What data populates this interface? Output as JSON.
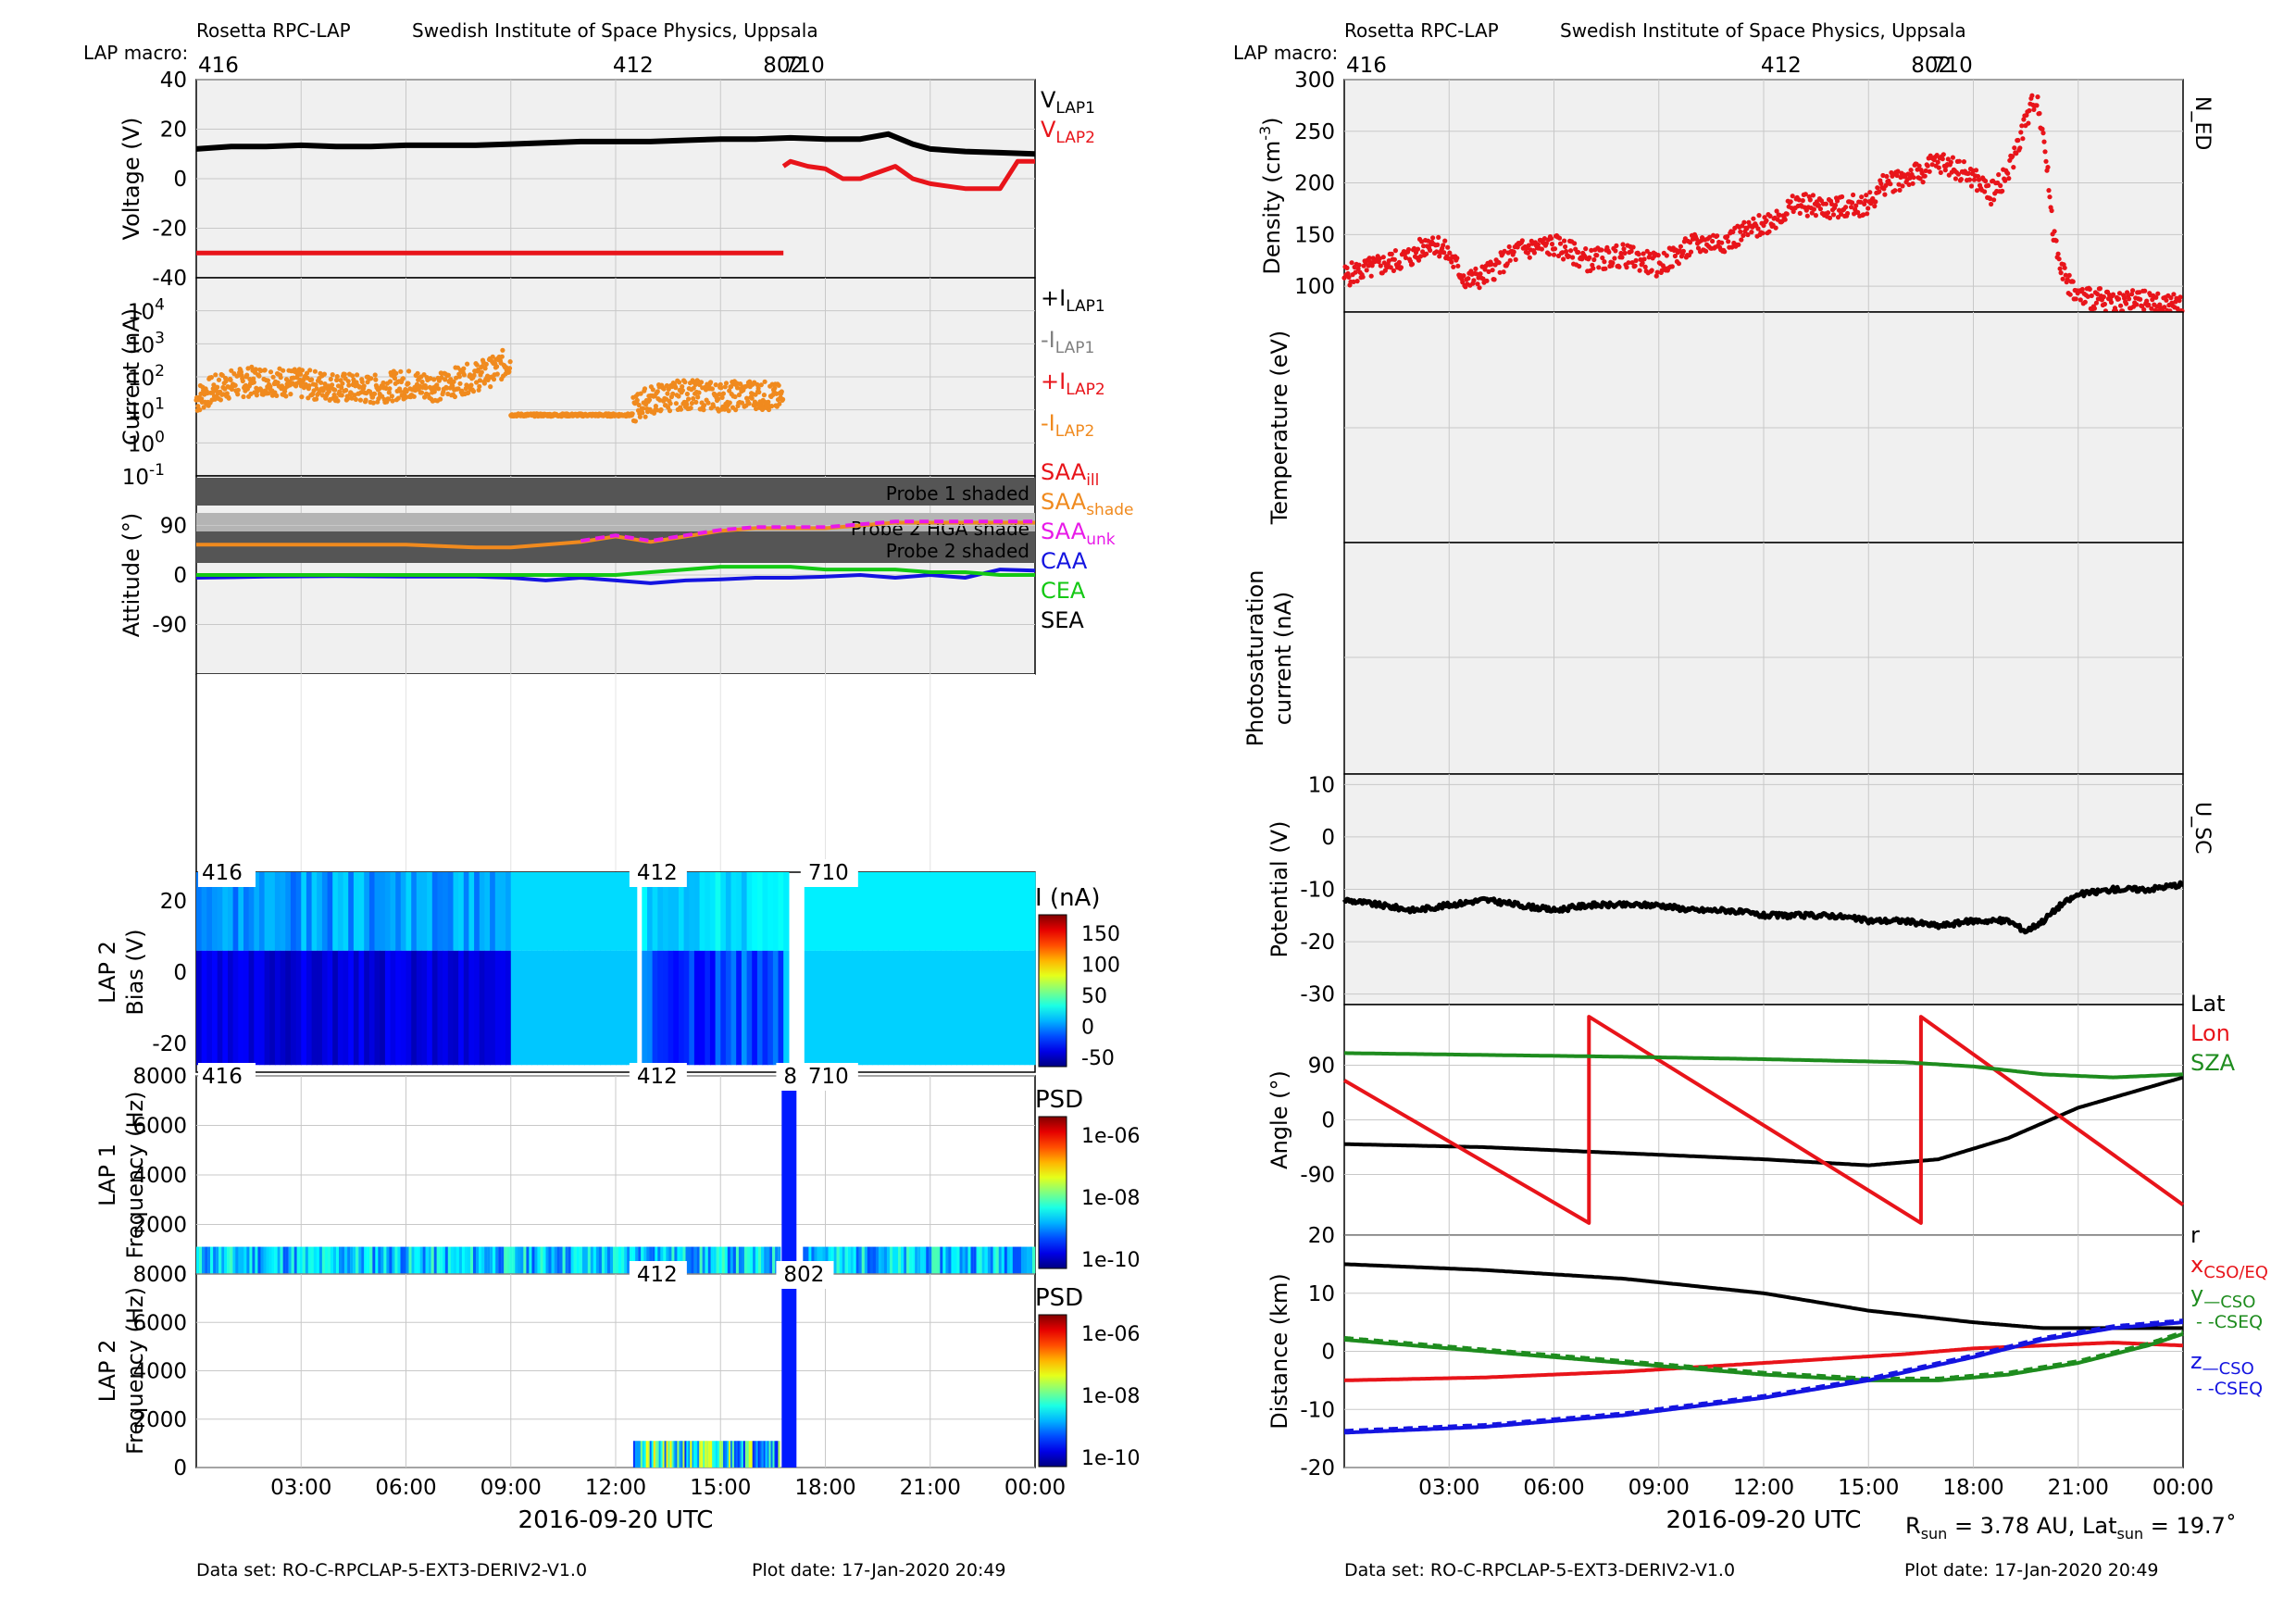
{
  "header": {
    "left": {
      "title": "Rosetta RPC-LAP",
      "institute": "Swedish Institute of Space Physics, Uppsala",
      "macro_label": "LAP macro:"
    },
    "right": {
      "title": "Rosetta RPC-LAP",
      "institute": "Swedish Institute of Space Physics, Uppsala",
      "macro_label": "LAP macro:"
    }
  },
  "footer": {
    "left": {
      "dataset": "Data set: RO-C-RPCLAP-5-EXT3-DERIV2-V1.0",
      "plot_date": "Plot date: 17-Jan-2020 20:49"
    },
    "right": {
      "dataset": "Data set: RO-C-RPCLAP-5-EXT3-DERIV2-V1.0",
      "plot_date": "Plot date: 17-Jan-2020 20:49"
    },
    "rsun": "R",
    "rsun_sub": "sun",
    "rsun_val": " = 3.78 AU, Lat",
    "lat_sub": "sun",
    "lat_val": " = 19.7˚"
  },
  "colors": {
    "panel_bg": "#f0f0f0",
    "grid": "#c8c8c8",
    "black": "#000000",
    "red": "#e8141a",
    "orange": "#f08a1e",
    "gray": "#808080",
    "magenta": "#e81ae8",
    "blue": "#1414e0",
    "green": "#14c814",
    "dark_green": "#1a8a1a",
    "sza_green": "#1e8c1e"
  },
  "chart_data": [
    {
      "id": "voltage",
      "type": "line",
      "ylabel": "Voltage (V)",
      "ylim": [
        -40,
        40
      ],
      "yticks": [
        "40",
        "20",
        "0",
        "-20",
        "-40"
      ],
      "xlim_hours": [
        0,
        24
      ],
      "legend": [
        "V",
        "V"
      ],
      "legend_subs": [
        "LAP1",
        "LAP2"
      ],
      "macros": [
        {
          "label": "416",
          "hour": 0
        },
        {
          "label": "412",
          "hour": 12.5
        },
        {
          "label": "802",
          "hour": 16.8
        },
        {
          "label": "710",
          "hour": 17.4
        }
      ],
      "series": [
        {
          "name": "V_LAP1",
          "color": "#000000",
          "x": [
            0,
            1,
            2,
            3,
            4,
            5,
            6,
            7,
            8,
            9,
            10,
            11,
            12,
            13,
            14,
            15,
            16,
            17,
            18,
            19,
            19.8,
            20.5,
            21,
            22,
            23,
            24
          ],
          "y": [
            12,
            13,
            13,
            13.5,
            13,
            13,
            13.5,
            13.5,
            13.5,
            14,
            14.5,
            15,
            15,
            15,
            15.5,
            16,
            16,
            16.5,
            16,
            16,
            18,
            14,
            12,
            11,
            10.5,
            10
          ]
        },
        {
          "name": "V_LAP2",
          "color": "#e8141a",
          "x": [
            0,
            16.8,
            null,
            16.8,
            17,
            17.5,
            18,
            18.5,
            19,
            20,
            20.5,
            21,
            22,
            23,
            23.5,
            24
          ],
          "y": [
            -30,
            -30,
            null,
            5,
            7,
            5,
            4,
            0,
            0,
            5,
            0,
            -2,
            -4,
            -4,
            7,
            7
          ]
        }
      ]
    },
    {
      "id": "current",
      "type": "scatter",
      "ylabel": "Current (nA)",
      "yscale": "log",
      "ylim": [
        0.1,
        100000
      ],
      "yticks": [
        {
          "base": "10",
          "exp": "4"
        },
        {
          "base": "10",
          "exp": "3"
        },
        {
          "base": "10",
          "exp": "2"
        },
        {
          "base": "10",
          "exp": "1"
        },
        {
          "base": "10",
          "exp": "0"
        },
        {
          "base": "10",
          "exp": "-1"
        }
      ],
      "legend": [
        "+I",
        "-I",
        "+I",
        "-I"
      ],
      "legend_subs": [
        "LAP1",
        "LAP1",
        "LAP2",
        "LAP2"
      ],
      "series": [
        {
          "name": "-I_LAP2",
          "color": "#f08a1e",
          "segments": [
            {
              "x": [
                0,
                1,
                2,
                3,
                4,
                5,
                6,
                7,
                8,
                8.5,
                9
              ],
              "y": [
                20,
                60,
                80,
                60,
                50,
                40,
                60,
                50,
                100,
                150,
                300
              ]
            },
            {
              "x": [
                9,
                10,
                11,
                12,
                12.5
              ],
              "y": [
                7,
                7,
                7,
                7,
                7
              ]
            },
            {
              "x": [
                12.5,
                13,
                14,
                15,
                16,
                16.8
              ],
              "y": [
                10,
                20,
                30,
                25,
                30,
                20
              ]
            }
          ]
        }
      ]
    },
    {
      "id": "attitude",
      "type": "line",
      "ylabel": "Attitude (°)",
      "ylim": [
        -180,
        180
      ],
      "yticks": [
        "90",
        "0",
        "-90"
      ],
      "legend": [
        "SAA",
        "SAA",
        "SAA",
        "CAA",
        "CEA",
        "SEA"
      ],
      "legend_subs": [
        "ill",
        "shade",
        "unk",
        "",
        "",
        ""
      ],
      "shade_labels": [
        "Probe 1 shaded",
        "Probe 2 HGA shade",
        "Probe 2 shaded"
      ],
      "series": [
        {
          "name": "SAA",
          "color": "#f08a1e",
          "x": [
            0,
            3,
            6,
            8,
            9,
            10,
            11,
            12,
            13,
            14,
            15,
            16,
            17,
            18,
            19,
            20,
            21,
            22,
            23,
            24
          ],
          "y": [
            55,
            55,
            55,
            50,
            50,
            55,
            60,
            70,
            60,
            70,
            80,
            85,
            85,
            85,
            90,
            95,
            95,
            95,
            95,
            95
          ]
        },
        {
          "name": "CAA",
          "color": "#1414e0",
          "x": [
            0,
            2,
            4,
            6,
            8,
            9,
            10,
            11,
            12,
            13,
            14,
            15,
            16,
            17,
            18,
            19,
            20,
            21,
            22,
            23,
            24
          ],
          "y": [
            -5,
            -3,
            -2,
            -3,
            -3,
            -5,
            -10,
            -5,
            -10,
            -15,
            -10,
            -8,
            -5,
            -5,
            -3,
            0,
            -5,
            0,
            -5,
            10,
            8
          ]
        },
        {
          "name": "CEA",
          "color": "#14c814",
          "x": [
            0,
            2,
            4,
            6,
            8,
            10,
            12,
            13,
            14,
            15,
            16,
            17,
            18,
            19,
            20,
            21,
            22,
            23,
            24
          ],
          "y": [
            0,
            0,
            0,
            0,
            0,
            0,
            0,
            5,
            10,
            15,
            15,
            15,
            10,
            10,
            10,
            5,
            5,
            0,
            0
          ]
        }
      ]
    },
    {
      "id": "lap2_bias",
      "type": "heatmap",
      "ylabel": "LAP 2",
      "ylabel2": "Bias (V)",
      "ylim": [
        -28,
        28
      ],
      "yticks": [
        "20",
        "0",
        "-20"
      ],
      "colorbar_label": "I (nA)",
      "colorbar_ticks": [
        "150",
        "100",
        "50",
        "0",
        "-50"
      ],
      "macro_labels": [
        "416",
        "412",
        "710"
      ]
    },
    {
      "id": "lap1_freq",
      "type": "heatmap",
      "ylabel": "LAP 1",
      "ylabel2": "Frequency (Hz)",
      "ylim": [
        0,
        8000
      ],
      "yticks": [
        "8000",
        "6000",
        "4000",
        "2000",
        "0"
      ],
      "colorbar_label": "PSD",
      "colorbar_ticks": [
        "1e-06",
        "1e-08",
        "1e-10"
      ],
      "macro_labels": [
        "416",
        "412",
        "8",
        "710"
      ]
    },
    {
      "id": "lap2_freq",
      "type": "heatmap",
      "ylabel": "LAP 2",
      "ylabel2": "Frequency (Hz)",
      "ylim": [
        0,
        8000
      ],
      "yticks": [
        "8000",
        "6000",
        "4000",
        "2000",
        "0"
      ],
      "colorbar_label": "PSD",
      "colorbar_ticks": [
        "1e-06",
        "1e-08",
        "1e-10"
      ],
      "macro_labels": [
        "412",
        "802"
      ],
      "xticks": [
        "03:00",
        "06:00",
        "09:00",
        "12:00",
        "15:00",
        "18:00",
        "21:00",
        "00:00"
      ],
      "xlabel": "2016-09-20 UTC"
    },
    {
      "id": "density",
      "type": "scatter",
      "ylabel": "Density (cm",
      "ylabel_sup": "-3",
      "ylabel_end": ")",
      "ylim": [
        75,
        300
      ],
      "yticks": [
        "300",
        "250",
        "200",
        "150",
        "100"
      ],
      "side_label": "N_ED",
      "series": [
        {
          "name": "N_ED",
          "color": "#e8141a",
          "x": [
            0,
            1,
            2,
            2.5,
            3,
            3.5,
            4,
            5,
            6,
            7,
            8,
            9,
            10,
            11,
            12,
            13,
            14,
            15,
            15.5,
            16,
            16.5,
            17,
            17.5,
            18,
            18.5,
            19,
            19.5,
            19.8,
            20,
            20.3,
            20.6,
            21,
            22,
            23,
            24
          ],
          "y": [
            110,
            120,
            130,
            145,
            130,
            105,
            110,
            135,
            140,
            125,
            130,
            120,
            140,
            145,
            160,
            180,
            175,
            180,
            200,
            205,
            210,
            220,
            215,
            205,
            190,
            210,
            260,
            285,
            250,
            150,
            110,
            90,
            85,
            85,
            80
          ]
        }
      ]
    },
    {
      "id": "temperature",
      "type": "line",
      "ylabel": "Temperature (eV)",
      "series": []
    },
    {
      "id": "photosat",
      "type": "line",
      "ylabel": "Photosaturation",
      "ylabel2": "current (nA)",
      "series": []
    },
    {
      "id": "potential",
      "type": "line",
      "ylabel": "Potential (V)",
      "ylim": [
        -32,
        12
      ],
      "yticks": [
        "10",
        "0",
        "-10",
        "-20",
        "-30"
      ],
      "side_label": "U_SC",
      "series": [
        {
          "name": "U_SC",
          "color": "#000000",
          "x": [
            0,
            1,
            2,
            3,
            4,
            5,
            6,
            7,
            8,
            9,
            10,
            11,
            12,
            13,
            14,
            15,
            16,
            17,
            18,
            19,
            19.5,
            20,
            20.5,
            21,
            22,
            23,
            24
          ],
          "y": [
            -12,
            -13,
            -14,
            -13,
            -12,
            -13,
            -14,
            -13,
            -13,
            -13,
            -14,
            -14,
            -15,
            -15,
            -15,
            -16,
            -16,
            -17,
            -16,
            -16,
            -18,
            -16,
            -13,
            -11,
            -10,
            -10,
            -9
          ]
        }
      ]
    },
    {
      "id": "angle",
      "type": "line",
      "ylabel": "Angle (°)",
      "ylim": [
        -190,
        190
      ],
      "yticks": [
        "90",
        "0",
        "-90"
      ],
      "legend": [
        "Lat",
        "Lon",
        "SZA"
      ],
      "series": [
        {
          "name": "Lat",
          "color": "#000000",
          "x": [
            0,
            4,
            8,
            12,
            15,
            17,
            19,
            21,
            24
          ],
          "y": [
            -40,
            -45,
            -55,
            -65,
            -75,
            -65,
            -30,
            20,
            70
          ]
        },
        {
          "name": "Lon",
          "color": "#e8141a",
          "x": [
            0,
            7,
            7,
            16.5,
            16.5,
            24
          ],
          "y": [
            65,
            -170,
            170,
            -170,
            170,
            -140
          ]
        },
        {
          "name": "SZA",
          "color": "#1e8c1e",
          "x": [
            0,
            4,
            8,
            12,
            16,
            18,
            20,
            22,
            24
          ],
          "y": [
            110,
            107,
            104,
            100,
            95,
            88,
            75,
            70,
            75
          ]
        }
      ]
    },
    {
      "id": "distance",
      "type": "line",
      "ylabel": "Distance (km)",
      "ylim": [
        -20,
        20
      ],
      "yticks": [
        "20",
        "10",
        "0",
        "-10",
        "-20"
      ],
      "xticks": [
        "03:00",
        "06:00",
        "09:00",
        "12:00",
        "15:00",
        "18:00",
        "21:00",
        "00:00"
      ],
      "xlabel": "2016-09-20 UTC",
      "legend": [
        "r",
        "x",
        "y",
        " - -CSEQ",
        "z",
        " - -CSEQ"
      ],
      "legend_subs": [
        "",
        "CSO/EQ",
        "—CSO",
        "",
        "—CSO",
        ""
      ],
      "series": [
        {
          "name": "r",
          "color": "#000000",
          "x": [
            0,
            4,
            8,
            12,
            15,
            18,
            20,
            22,
            24
          ],
          "y": [
            15,
            14,
            12.5,
            10,
            7,
            5,
            4,
            4,
            4
          ]
        },
        {
          "name": "x",
          "color": "#e8141a",
          "x": [
            0,
            4,
            8,
            12,
            16,
            18,
            20,
            22,
            24
          ],
          "y": [
            -5,
            -4.5,
            -3.5,
            -2,
            -0.5,
            0.5,
            1,
            1.5,
            1
          ]
        },
        {
          "name": "y",
          "color": "#1e8c1e",
          "x": [
            0,
            4,
            8,
            12,
            15,
            17,
            19,
            21,
            23,
            24
          ],
          "y": [
            2,
            0,
            -2,
            -4,
            -5,
            -5,
            -4,
            -2,
            1,
            3
          ]
        },
        {
          "name": "z",
          "color": "#1414e0",
          "x": [
            0,
            4,
            8,
            12,
            15,
            18,
            20,
            22,
            24
          ],
          "y": [
            -14,
            -13,
            -11,
            -8,
            -5,
            -1,
            2,
            4,
            5
          ]
        }
      ]
    }
  ],
  "right_macros": [
    {
      "label": "416",
      "hour": 0
    },
    {
      "label": "412",
      "hour": 12.5
    },
    {
      "label": "802",
      "hour": 16.8
    },
    {
      "label": "710",
      "hour": 17.4
    }
  ]
}
